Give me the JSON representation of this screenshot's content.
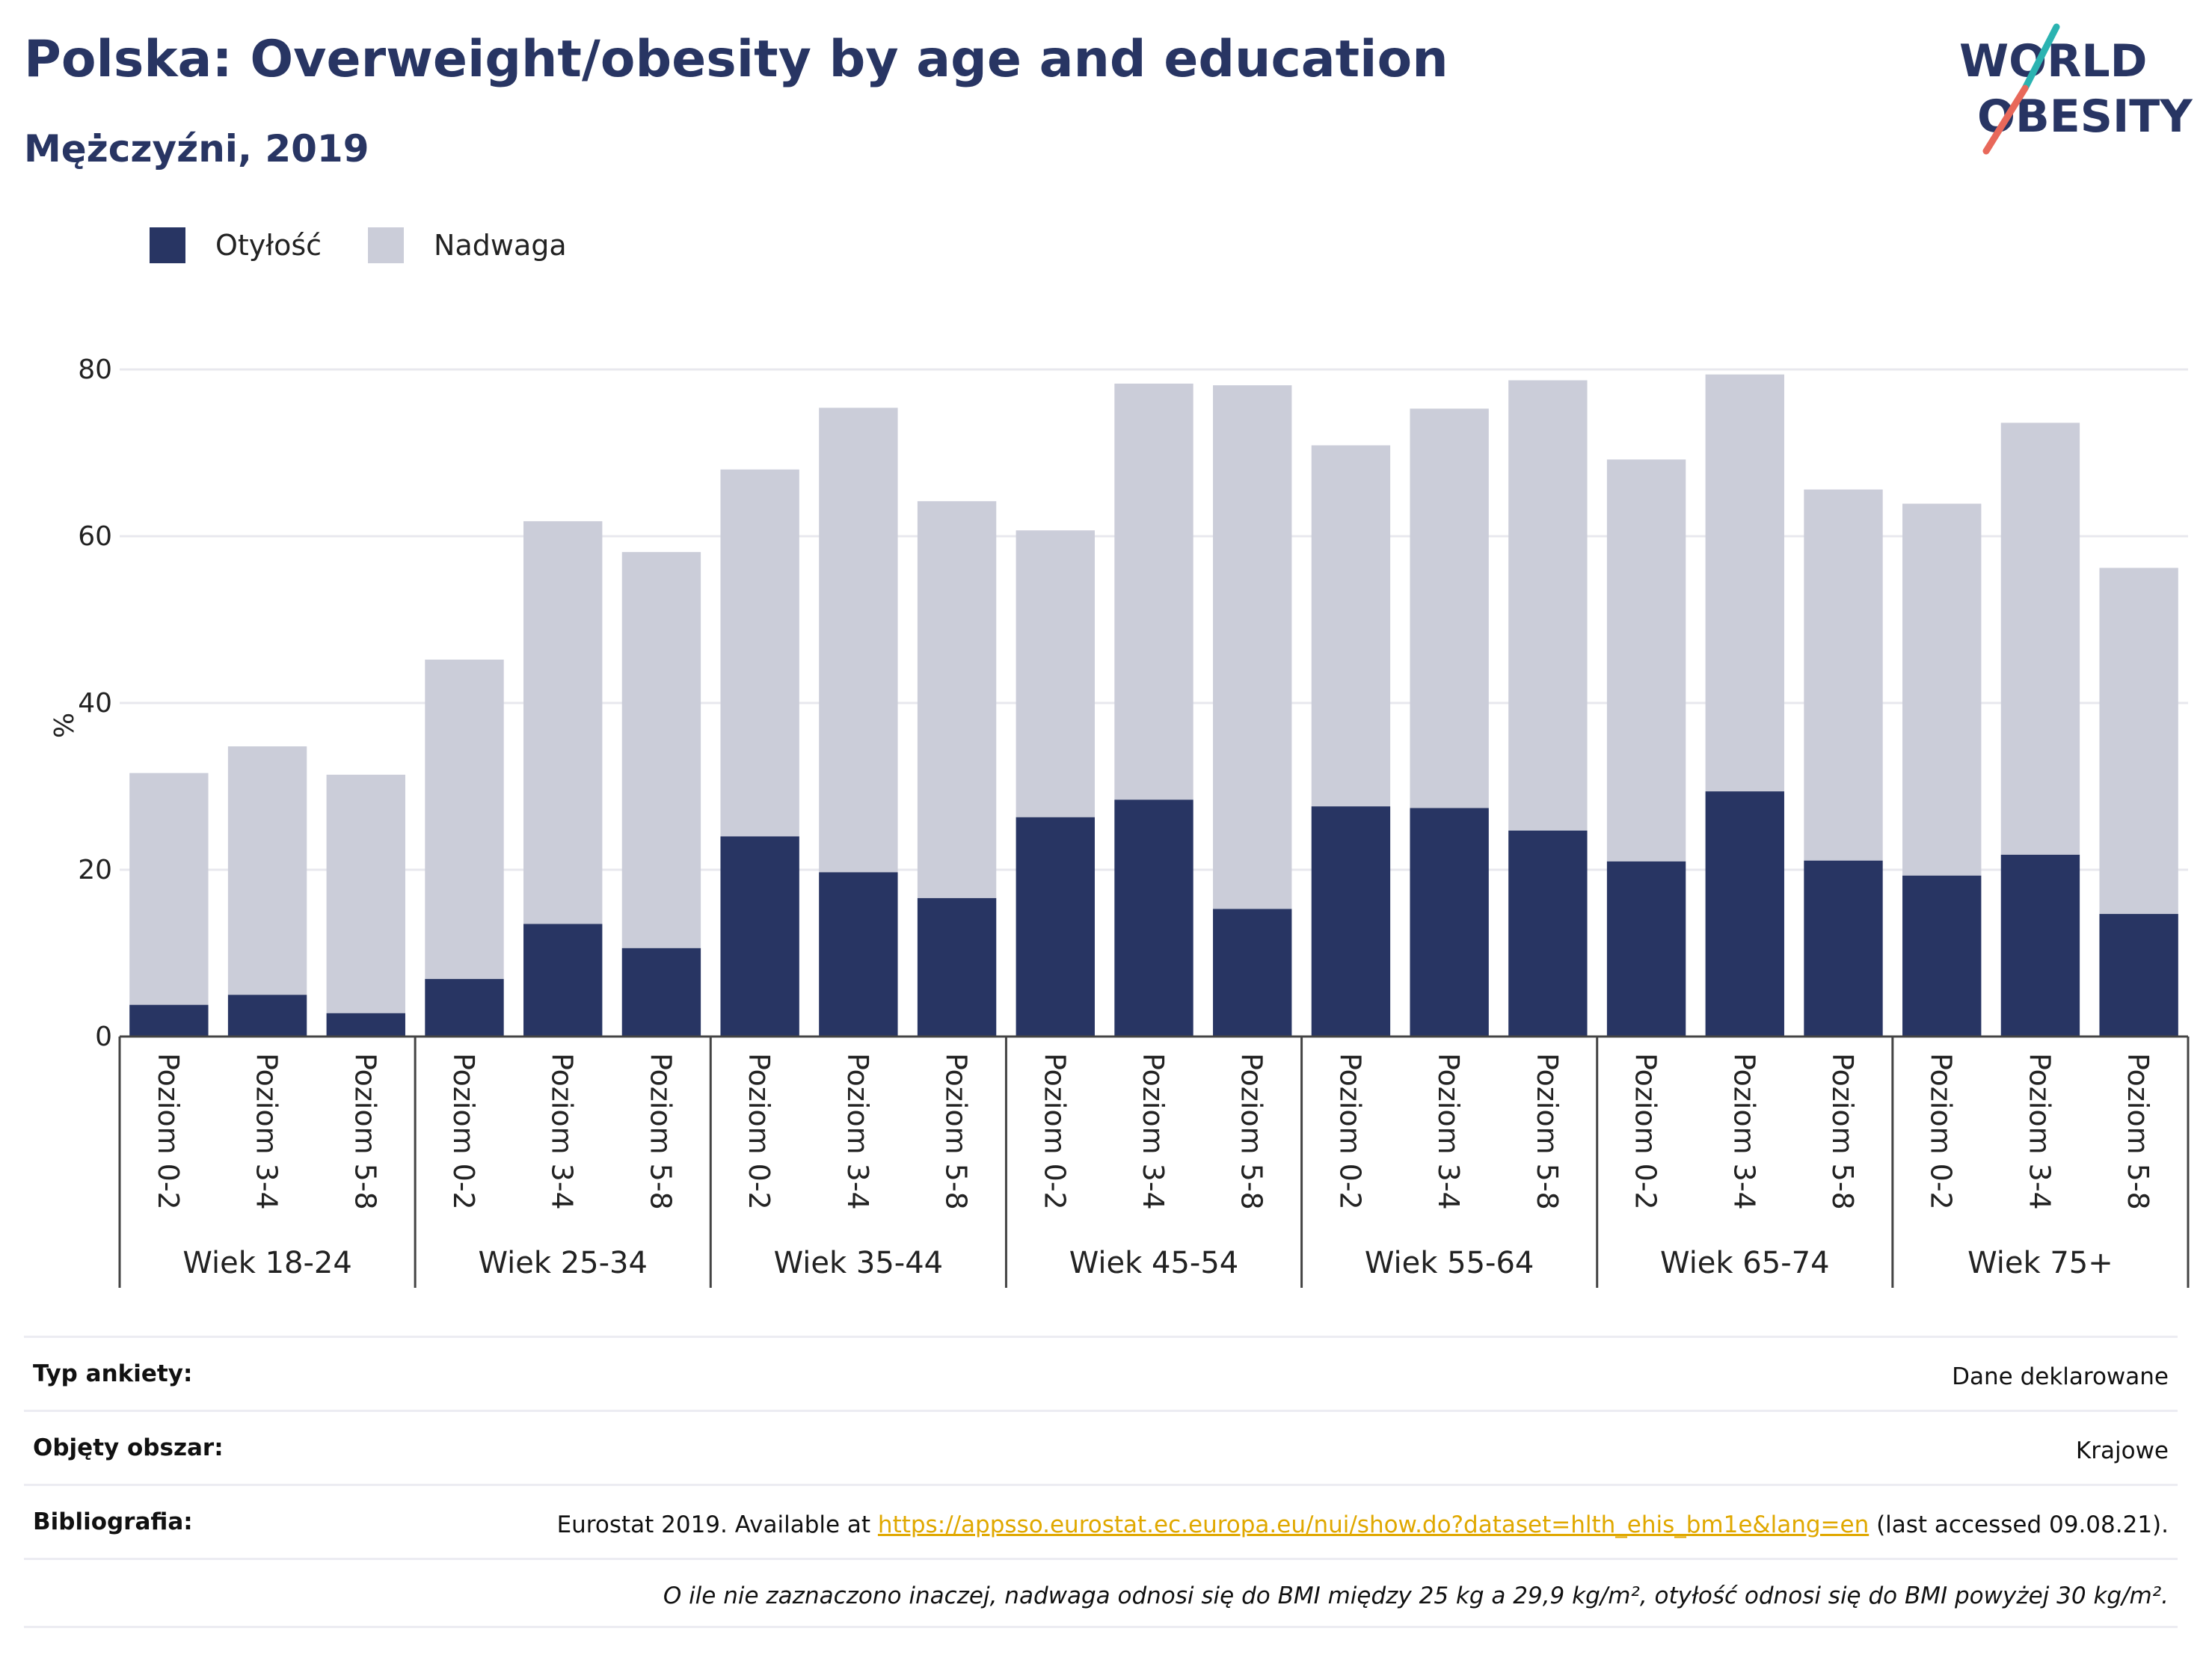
{
  "header": {
    "title": "Polska: Overweight/obesity by age and education",
    "subtitle": "Mężczyźni, 2019"
  },
  "logo": {
    "line1": "WORLD",
    "line2": "OBESITY"
  },
  "colors": {
    "obesity": "#283563",
    "overweight": "#cbcdd9",
    "accent": "#e0a800",
    "logo_teal": "#2bb3b1",
    "logo_red": "#e8685a"
  },
  "legend": {
    "items": [
      {
        "label": "Otyłość",
        "color": "#283563"
      },
      {
        "label": "Nadwaga",
        "color": "#cbcdd9"
      }
    ]
  },
  "chart_data": {
    "type": "bar",
    "stacked": true,
    "ylabel": "%",
    "ylim": [
      0,
      80
    ],
    "yticks": [
      0,
      20,
      40,
      60,
      80
    ],
    "grid": true,
    "legend_position": "top-left",
    "groups": [
      "Wiek 18-24",
      "Wiek 25-34",
      "Wiek 35-44",
      "Wiek 45-54",
      "Wiek 55-64",
      "Wiek 65-74",
      "Wiek 75+"
    ],
    "levels": [
      "Poziom 0-2",
      "Poziom 3-4",
      "Poziom 5-8"
    ],
    "series": [
      {
        "name": "Otyłość",
        "values": [
          3.8,
          5.0,
          2.8,
          6.9,
          13.5,
          10.6,
          24.0,
          19.7,
          16.6,
          26.3,
          28.4,
          15.3,
          27.6,
          27.4,
          24.7,
          21.0,
          29.4,
          21.1,
          19.3,
          21.8,
          14.7
        ]
      },
      {
        "name": "Nadwaga",
        "values": [
          27.8,
          29.8,
          28.6,
          38.3,
          48.3,
          47.5,
          44.0,
          55.7,
          47.6,
          34.4,
          49.9,
          62.8,
          43.3,
          47.9,
          54.0,
          48.2,
          50.0,
          44.5,
          44.6,
          51.8,
          41.5
        ]
      }
    ]
  },
  "meta": {
    "rows": [
      {
        "key": "Typ ankiety:",
        "value": "Dane deklarowane"
      },
      {
        "key": "Objęty obszar:",
        "value": "Krajowe"
      },
      {
        "key": "Bibliografia:",
        "value_pre": "Eurostat 2019. Available at ",
        "link": "https://appsso.eurostat.ec.europa.eu/nui/show.do?dataset=hlth_ehis_bm1e&lang=en",
        "value_post": " (last accessed 09.08.21)."
      }
    ],
    "note": "O ile nie zaznaczono inaczej, nadwaga odnosi się do BMI między 25 kg a 29,9 kg/m², otyłość odnosi się do BMI powyżej 30 kg/m²."
  }
}
